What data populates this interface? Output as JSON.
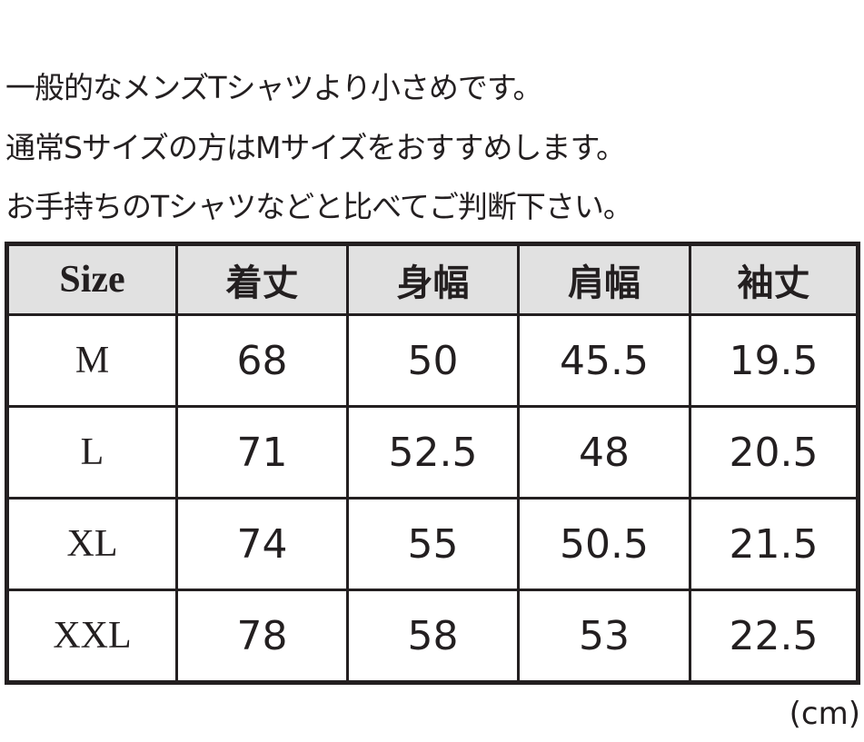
{
  "notes": [
    "一般的なメンズTシャツより小さめです。",
    "通常Sサイズの方はMサイズをおすすめします。",
    "お手持ちのTシャツなどと比べてご判断下さい。"
  ],
  "table": {
    "header": [
      "Size",
      "着丈",
      "身幅",
      "肩幅",
      "袖丈"
    ],
    "rows": [
      [
        "M",
        68,
        50,
        45.5,
        19.5
      ],
      [
        "L",
        71,
        52.5,
        48,
        20.5
      ],
      [
        "XL",
        74,
        55,
        50.5,
        21.5
      ],
      [
        "XXL",
        78,
        58,
        53,
        22.5
      ]
    ]
  },
  "unit": "(cm)"
}
